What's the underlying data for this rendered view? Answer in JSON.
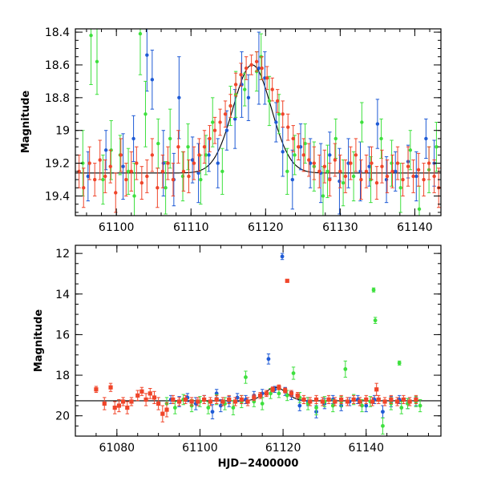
{
  "chart_data": [
    {
      "type": "scatter",
      "panel": "top",
      "title": "",
      "xlabel": "",
      "ylabel": "Magnitude",
      "xlim": [
        61094.5,
        61143.5
      ],
      "ylim": [
        19.52,
        18.38
      ],
      "y_inverted": true,
      "xticks": [
        61100,
        61110,
        61120,
        61130,
        61140
      ],
      "xtick_labels": [
        "61100",
        "61110",
        "61120",
        "61130",
        "61140"
      ],
      "yticks": [
        18.4,
        18.6,
        18.8,
        19,
        19.2,
        19.4
      ],
      "ytick_labels": [
        "18.4",
        "18.6",
        "18.8",
        "19",
        "19.2",
        "19.4"
      ],
      "model": {
        "baseline": 19.26,
        "peak_mag": 18.6,
        "peak_x": 61118.2,
        "width": 3.6
      },
      "colors": {
        "blue": "#1f5bd6",
        "green": "#3ee03e",
        "red": "#f0452a"
      },
      "series": [
        {
          "name": "blue",
          "x": [
            61096.2,
            61098.6,
            61100.9,
            61102.3,
            61104.1,
            61104.8,
            61106.3,
            61107.7,
            61108.4,
            61110.2,
            61111.0,
            61112.4,
            61113.6,
            61114.8,
            61115.9,
            61116.8,
            61117.7,
            61119.1,
            61119.9,
            61121.4,
            61122.3,
            61123.6,
            61124.7,
            61126.0,
            61127.4,
            61128.6,
            61129.9,
            61131.1,
            61132.7,
            61133.9,
            61135.0,
            61136.2,
            61137.4,
            61139.1,
            61140.2,
            61141.5,
            61142.6
          ],
          "y": [
            19.28,
            19.12,
            19.22,
            19.05,
            18.54,
            18.69,
            19.2,
            19.3,
            18.8,
            19.18,
            19.26,
            19.15,
            19.2,
            19.0,
            18.93,
            18.72,
            18.8,
            18.62,
            18.68,
            18.95,
            19.13,
            19.3,
            19.1,
            19.2,
            19.26,
            19.15,
            19.31,
            19.2,
            19.25,
            19.22,
            18.96,
            19.3,
            19.25,
            19.19,
            19.28,
            19.05,
            19.2
          ],
          "err": [
            0.15,
            0.12,
            0.2,
            0.14,
            0.22,
            0.18,
            0.2,
            0.16,
            0.25,
            0.14,
            0.18,
            0.1,
            0.15,
            0.12,
            0.18,
            0.2,
            0.14,
            0.22,
            0.16,
            0.12,
            0.15,
            0.18,
            0.14,
            0.15,
            0.18,
            0.14,
            0.2,
            0.15,
            0.18,
            0.12,
            0.15,
            0.14,
            0.12,
            0.1,
            0.15,
            0.12,
            0.14
          ]
        },
        {
          "name": "green",
          "x": [
            61095.5,
            61096.6,
            61097.4,
            61098.2,
            61099.3,
            61100.5,
            61101.6,
            61102.4,
            61103.2,
            61103.9,
            61105.6,
            61106.6,
            61107.2,
            61108.9,
            61109.6,
            61111.3,
            61112.0,
            61112.9,
            61114.2,
            61115.3,
            61116.0,
            61117.2,
            61118.8,
            61119.4,
            61120.5,
            61121.8,
            61122.9,
            61123.9,
            61125.3,
            61126.5,
            61127.7,
            61128.3,
            61129.4,
            61130.4,
            61131.8,
            61132.9,
            61134.1,
            61135.5,
            61136.9,
            61138.1,
            61139.4,
            61140.6,
            61141.9,
            61142.9
          ],
          "y": [
            19.2,
            18.42,
            18.58,
            19.3,
            19.12,
            19.15,
            19.25,
            19.4,
            18.41,
            18.9,
            19.08,
            19.35,
            19.05,
            19.28,
            19.1,
            19.3,
            19.15,
            18.95,
            19.25,
            18.85,
            18.78,
            18.75,
            18.64,
            18.55,
            18.82,
            18.9,
            19.25,
            19.15,
            19.08,
            19.22,
            19.4,
            19.25,
            19.05,
            19.32,
            19.28,
            18.95,
            19.3,
            19.05,
            19.2,
            19.35,
            19.12,
            19.48,
            19.24,
            19.1
          ],
          "err": [
            0.2,
            0.3,
            0.2,
            0.15,
            0.18,
            0.12,
            0.14,
            0.2,
            0.25,
            0.2,
            0.15,
            0.16,
            0.18,
            0.15,
            0.14,
            0.15,
            0.12,
            0.15,
            0.14,
            0.12,
            0.14,
            0.1,
            0.12,
            0.14,
            0.15,
            0.12,
            0.14,
            0.12,
            0.12,
            0.15,
            0.18,
            0.16,
            0.12,
            0.14,
            0.15,
            0.12,
            0.14,
            0.12,
            0.14,
            0.15,
            0.12,
            0.14,
            0.14,
            0.15
          ]
        },
        {
          "name": "red",
          "x": [
            61095.0,
            61095.6,
            61096.4,
            61097.1,
            61097.8,
            61098.5,
            61099.2,
            61099.9,
            61100.6,
            61101.3,
            61102.0,
            61102.7,
            61103.4,
            61104.1,
            61104.8,
            61105.5,
            61106.2,
            61106.9,
            61107.6,
            61108.3,
            61109.0,
            61109.7,
            61110.4,
            61111.1,
            61111.8,
            61112.5,
            61113.2,
            61113.9,
            61114.6,
            61115.3,
            61116.0,
            61116.7,
            61117.4,
            61118.1,
            61118.8,
            61119.5,
            61120.2,
            61120.9,
            61121.6,
            61122.3,
            61123.0,
            61123.7,
            61124.4,
            61125.1,
            61125.8,
            61126.5,
            61127.2,
            61127.9,
            61128.6,
            61129.3,
            61130.0,
            61130.7,
            61131.4,
            61132.1,
            61132.8,
            61133.5,
            61134.2,
            61134.9,
            61135.6,
            61136.3,
            61137.0,
            61137.7,
            61138.4,
            61139.1,
            61139.8,
            61140.5,
            61141.2,
            61141.9,
            61142.6,
            61143.2
          ],
          "y": [
            19.25,
            19.35,
            19.2,
            19.3,
            19.18,
            19.28,
            19.22,
            19.38,
            19.15,
            19.3,
            19.25,
            19.2,
            19.32,
            19.28,
            19.15,
            19.35,
            19.25,
            19.2,
            19.3,
            19.1,
            19.25,
            19.28,
            19.2,
            19.15,
            19.1,
            19.05,
            19.0,
            18.95,
            18.9,
            18.85,
            18.72,
            18.66,
            18.62,
            18.6,
            18.58,
            18.62,
            18.68,
            18.75,
            18.82,
            18.9,
            18.98,
            19.05,
            19.1,
            19.15,
            19.18,
            19.2,
            19.25,
            19.22,
            19.3,
            19.18,
            19.25,
            19.28,
            19.2,
            19.15,
            19.3,
            19.25,
            19.2,
            19.32,
            19.22,
            19.28,
            19.25,
            19.2,
            19.3,
            19.22,
            19.28,
            19.24,
            19.3,
            19.2,
            19.28,
            19.35
          ],
          "err": [
            0.1,
            0.12,
            0.1,
            0.1,
            0.12,
            0.1,
            0.1,
            0.12,
            0.1,
            0.1,
            0.12,
            0.1,
            0.1,
            0.1,
            0.1,
            0.12,
            0.1,
            0.1,
            0.1,
            0.1,
            0.12,
            0.1,
            0.1,
            0.1,
            0.1,
            0.08,
            0.08,
            0.08,
            0.08,
            0.07,
            0.07,
            0.07,
            0.07,
            0.06,
            0.06,
            0.07,
            0.07,
            0.07,
            0.07,
            0.08,
            0.08,
            0.08,
            0.08,
            0.1,
            0.1,
            0.1,
            0.1,
            0.1,
            0.1,
            0.1,
            0.1,
            0.1,
            0.1,
            0.1,
            0.12,
            0.1,
            0.1,
            0.1,
            0.1,
            0.1,
            0.1,
            0.1,
            0.1,
            0.12,
            0.1,
            0.1,
            0.1,
            0.1,
            0.1,
            0.12
          ]
        }
      ]
    },
    {
      "type": "scatter",
      "panel": "bottom",
      "title": "",
      "xlabel": "HJD−2400000",
      "ylabel": "Magnitude",
      "xlim": [
        61070,
        61158
      ],
      "ylim": [
        21.0,
        11.6
      ],
      "y_inverted": true,
      "xticks": [
        61080,
        61100,
        61120,
        61140
      ],
      "xtick_labels": [
        "61080",
        "61100",
        "61120",
        "61140"
      ],
      "yticks": [
        12,
        14,
        16,
        18,
        20
      ],
      "ytick_labels": [
        "12",
        "14",
        "16",
        "18",
        "20"
      ],
      "model": {
        "baseline": 19.26,
        "peak_mag": 18.6,
        "peak_x": 61118.2,
        "width": 3.6
      },
      "colors": {
        "blue": "#1f5bd6",
        "green": "#3ee03e",
        "red": "#f0452a"
      },
      "series": [
        {
          "name": "blue",
          "x": [
            61093,
            61095,
            61097,
            61099,
            61101,
            61103,
            61104,
            61105,
            61107,
            61109,
            61111,
            61113,
            61115,
            61116.5,
            61118,
            61119.8,
            61120.5,
            61122,
            61124,
            61126,
            61128,
            61130,
            61132,
            61134,
            61136,
            61138,
            61140,
            61142,
            61144,
            61146,
            61148,
            61150,
            61152
          ],
          "y": [
            19.2,
            19.3,
            19.1,
            19.4,
            19.2,
            19.8,
            18.9,
            19.5,
            19.3,
            19.1,
            19.2,
            19.0,
            18.9,
            17.2,
            18.7,
            12.15,
            18.8,
            19.0,
            19.5,
            19.3,
            19.8,
            19.4,
            19.2,
            19.5,
            19.3,
            19.2,
            19.5,
            19.2,
            19.8,
            19.3,
            19.2,
            19.4,
            19.3
          ],
          "err": [
            0.2,
            0.25,
            0.2,
            0.3,
            0.2,
            0.35,
            0.2,
            0.3,
            0.25,
            0.2,
            0.2,
            0.2,
            0.2,
            0.25,
            0.15,
            0.15,
            0.2,
            0.2,
            0.25,
            0.2,
            0.3,
            0.25,
            0.2,
            0.25,
            0.2,
            0.2,
            0.3,
            0.2,
            0.3,
            0.25,
            0.2,
            0.25,
            0.2
          ]
        },
        {
          "name": "green",
          "x": [
            61092,
            61094,
            61096,
            61098,
            61100,
            61102,
            61104,
            61106,
            61108,
            61110,
            61111,
            61113,
            61115,
            61117,
            61119,
            61121,
            61122.5,
            61124,
            61126,
            61128,
            61130,
            61132,
            61134,
            61135,
            61137,
            61139,
            61141,
            61141.8,
            61142.2,
            61144,
            61146,
            61148,
            61148.5,
            61150,
            61152,
            61153
          ],
          "y": [
            19.4,
            19.6,
            19.2,
            19.5,
            19.3,
            19.6,
            19.2,
            19.4,
            19.6,
            19.3,
            18.1,
            19.3,
            19.4,
            18.9,
            18.9,
            19.0,
            17.9,
            19.1,
            19.4,
            19.6,
            19.3,
            19.5,
            19.3,
            17.7,
            19.2,
            19.5,
            19.3,
            13.8,
            15.3,
            20.5,
            19.4,
            17.4,
            19.6,
            19.4,
            19.3,
            19.5
          ],
          "err": [
            0.3,
            0.3,
            0.25,
            0.3,
            0.25,
            0.3,
            0.25,
            0.3,
            0.35,
            0.3,
            0.3,
            0.25,
            0.3,
            0.25,
            0.2,
            0.25,
            0.3,
            0.25,
            0.3,
            0.35,
            0.25,
            0.3,
            0.25,
            0.4,
            0.25,
            0.3,
            0.25,
            0.1,
            0.15,
            0.4,
            0.3,
            0.1,
            0.3,
            0.25,
            0.25,
            0.3
          ]
        },
        {
          "name": "red",
          "x": [
            61075,
            61077,
            61078.5,
            61079.5,
            61080.5,
            61081.5,
            61082.5,
            61083.5,
            61085,
            61086,
            61087,
            61088,
            61089,
            61090,
            61091,
            61092,
            61093.5,
            61095,
            61096.5,
            61098,
            61099.5,
            61101,
            61102.5,
            61104,
            61105.5,
            61107,
            61108.5,
            61110,
            61111.5,
            61113,
            61114.5,
            61116,
            61117.5,
            61119,
            61120.5,
            61121,
            61122,
            61123.5,
            61125,
            61126.5,
            61128,
            61129.5,
            61131,
            61132.5,
            61134,
            61135.5,
            61137,
            61138.5,
            61140,
            61141.5,
            61142.5,
            61143,
            61144.5,
            61146,
            61147.5,
            61149,
            61150.5,
            61152
          ],
          "y": [
            18.7,
            19.4,
            18.6,
            19.6,
            19.5,
            19.3,
            19.6,
            19.3,
            19.0,
            18.8,
            19.2,
            18.9,
            19.1,
            19.4,
            19.9,
            19.7,
            19.2,
            19.3,
            19.2,
            19.3,
            19.3,
            19.2,
            19.3,
            19.2,
            19.3,
            19.2,
            19.3,
            19.2,
            19.3,
            19.1,
            19.0,
            18.9,
            18.7,
            18.6,
            18.75,
            13.35,
            18.9,
            19.0,
            19.2,
            19.3,
            19.2,
            19.3,
            19.2,
            19.3,
            19.2,
            19.3,
            19.2,
            19.3,
            19.2,
            19.3,
            18.7,
            19.2,
            19.3,
            19.2,
            19.3,
            19.2,
            19.3,
            19.2
          ],
          "err": [
            0.15,
            0.3,
            0.2,
            0.3,
            0.3,
            0.2,
            0.3,
            0.2,
            0.25,
            0.2,
            0.3,
            0.25,
            0.3,
            0.3,
            0.4,
            0.35,
            0.2,
            0.2,
            0.2,
            0.2,
            0.2,
            0.2,
            0.2,
            0.2,
            0.2,
            0.2,
            0.2,
            0.2,
            0.2,
            0.15,
            0.15,
            0.15,
            0.12,
            0.12,
            0.12,
            0.05,
            0.15,
            0.15,
            0.2,
            0.2,
            0.2,
            0.2,
            0.2,
            0.2,
            0.2,
            0.2,
            0.2,
            0.2,
            0.2,
            0.2,
            0.3,
            0.2,
            0.2,
            0.2,
            0.2,
            0.2,
            0.2,
            0.2
          ]
        }
      ]
    }
  ]
}
